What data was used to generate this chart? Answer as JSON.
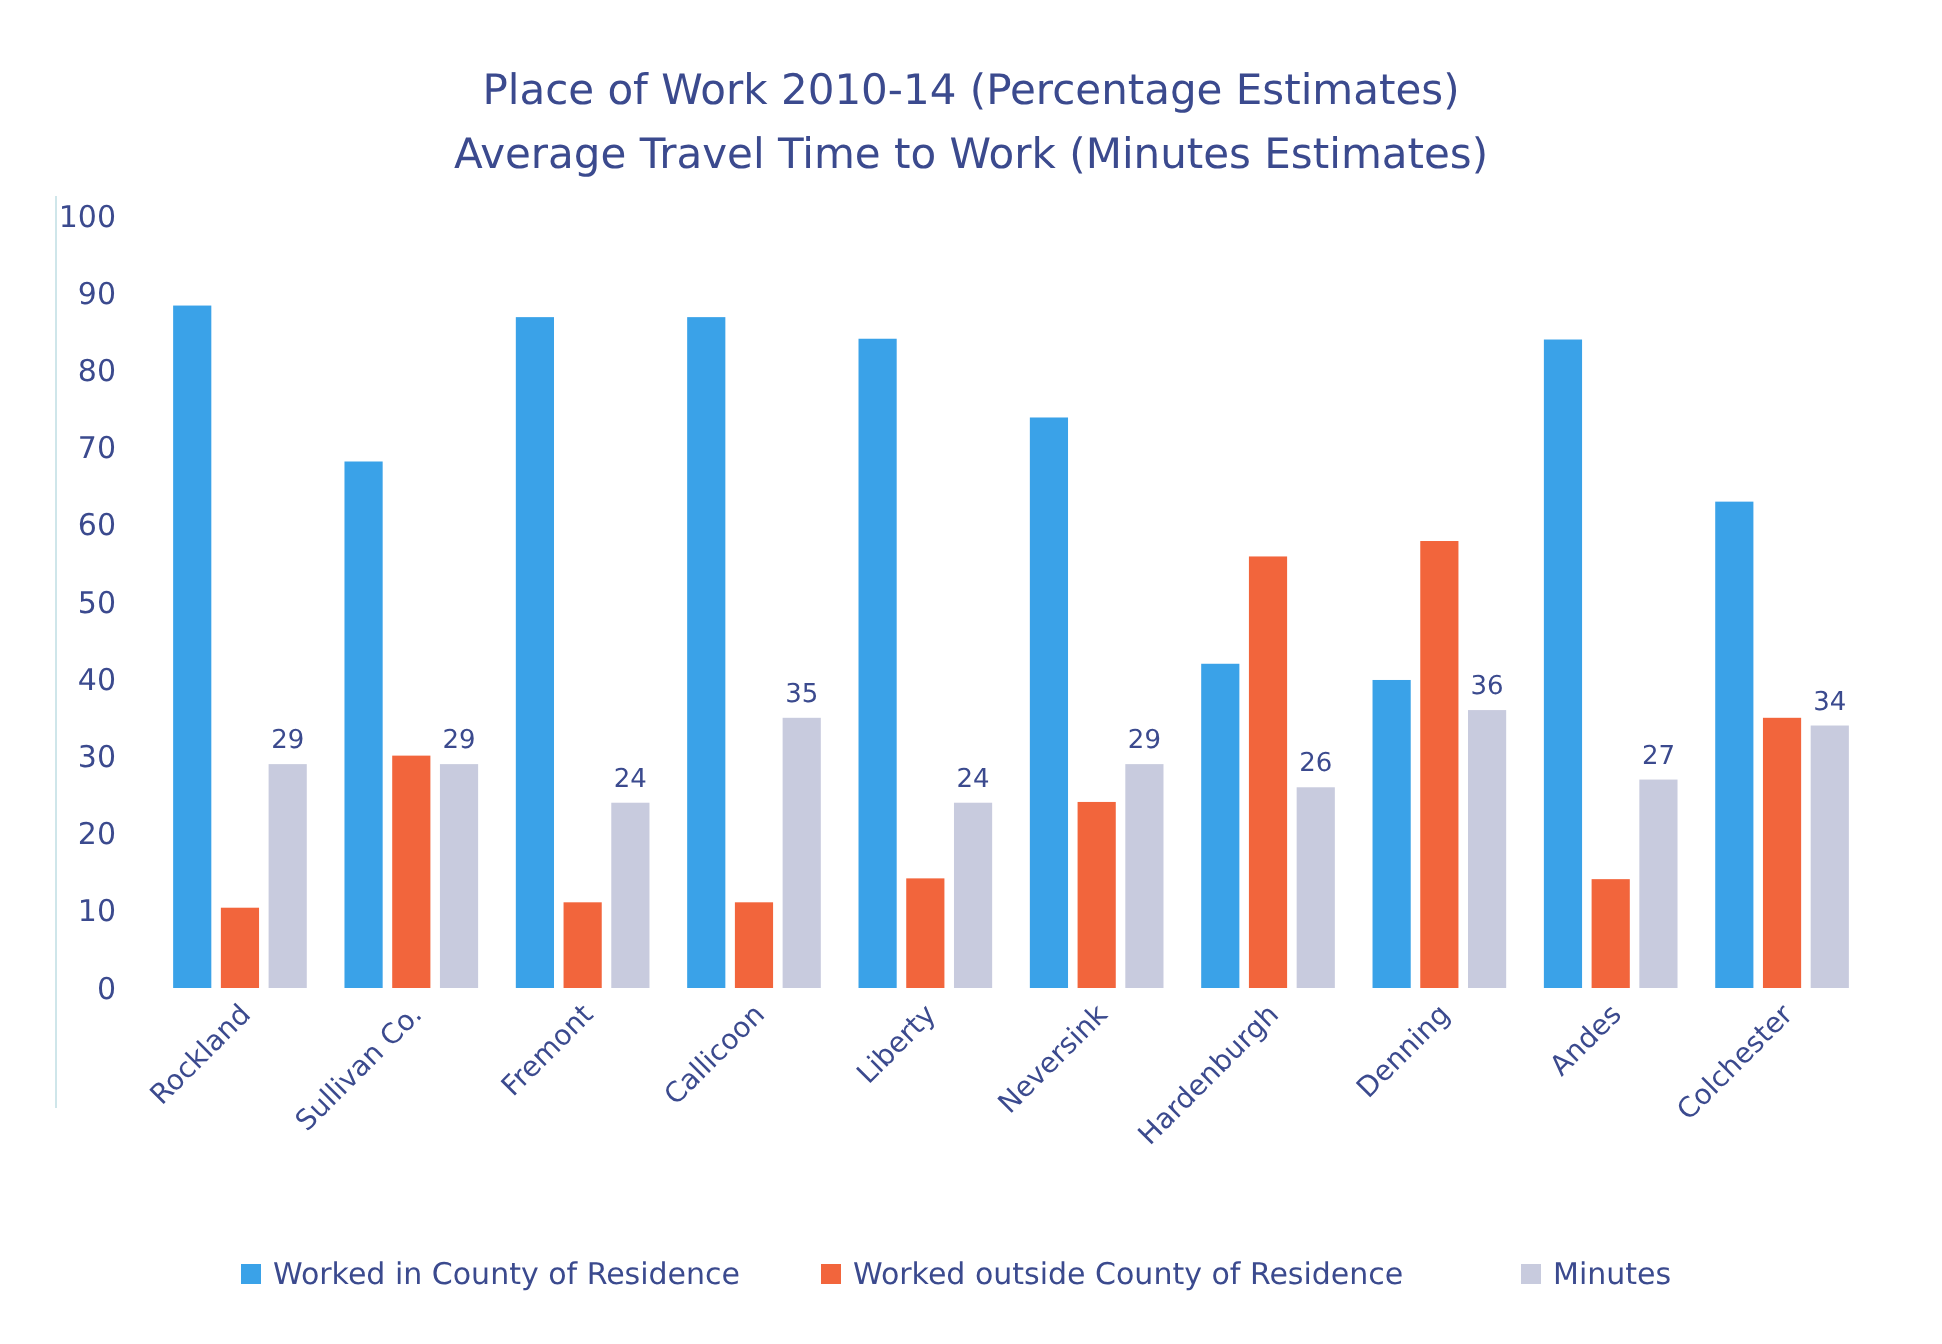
{
  "chart_data": {
    "type": "bar",
    "title": "Place of Work 2010-14 (Percentage Estimates)\nAverage Travel Time to Work (Minutes Estimates)",
    "categories": [
      "Rockland",
      "Sullivan Co.",
      "Fremont",
      "Callicoon",
      "Liberty",
      "Neversink",
      "Hardenburgh",
      "Denning",
      "Andes",
      "Colchester"
    ],
    "series": [
      {
        "name": "Worked in  County of Residence",
        "color": "#3aa2e8",
        "values": [
          88.4,
          68.2,
          86.9,
          86.9,
          84.1,
          73.9,
          42,
          39.9,
          84,
          63
        ]
      },
      {
        "name": "Worked outside County of Residence",
        "color": "#f2653c",
        "values": [
          10.4,
          30.1,
          11.1,
          11.1,
          14.2,
          24.1,
          55.9,
          57.9,
          14.1,
          35
        ]
      },
      {
        "name": "Minutes",
        "color": "#c8cbde",
        "values": [
          29,
          29,
          24,
          35,
          24,
          29,
          26,
          36,
          27,
          34
        ],
        "value_labels": [
          "29",
          "29",
          "24",
          "35",
          "24",
          "29",
          "26",
          "36",
          "27",
          "34"
        ]
      }
    ],
    "ylim": [
      0,
      100
    ],
    "yticks": [
      0,
      10,
      20,
      30,
      40,
      50,
      60,
      70,
      80,
      90,
      100
    ],
    "grid": false,
    "legend": "bottom"
  }
}
